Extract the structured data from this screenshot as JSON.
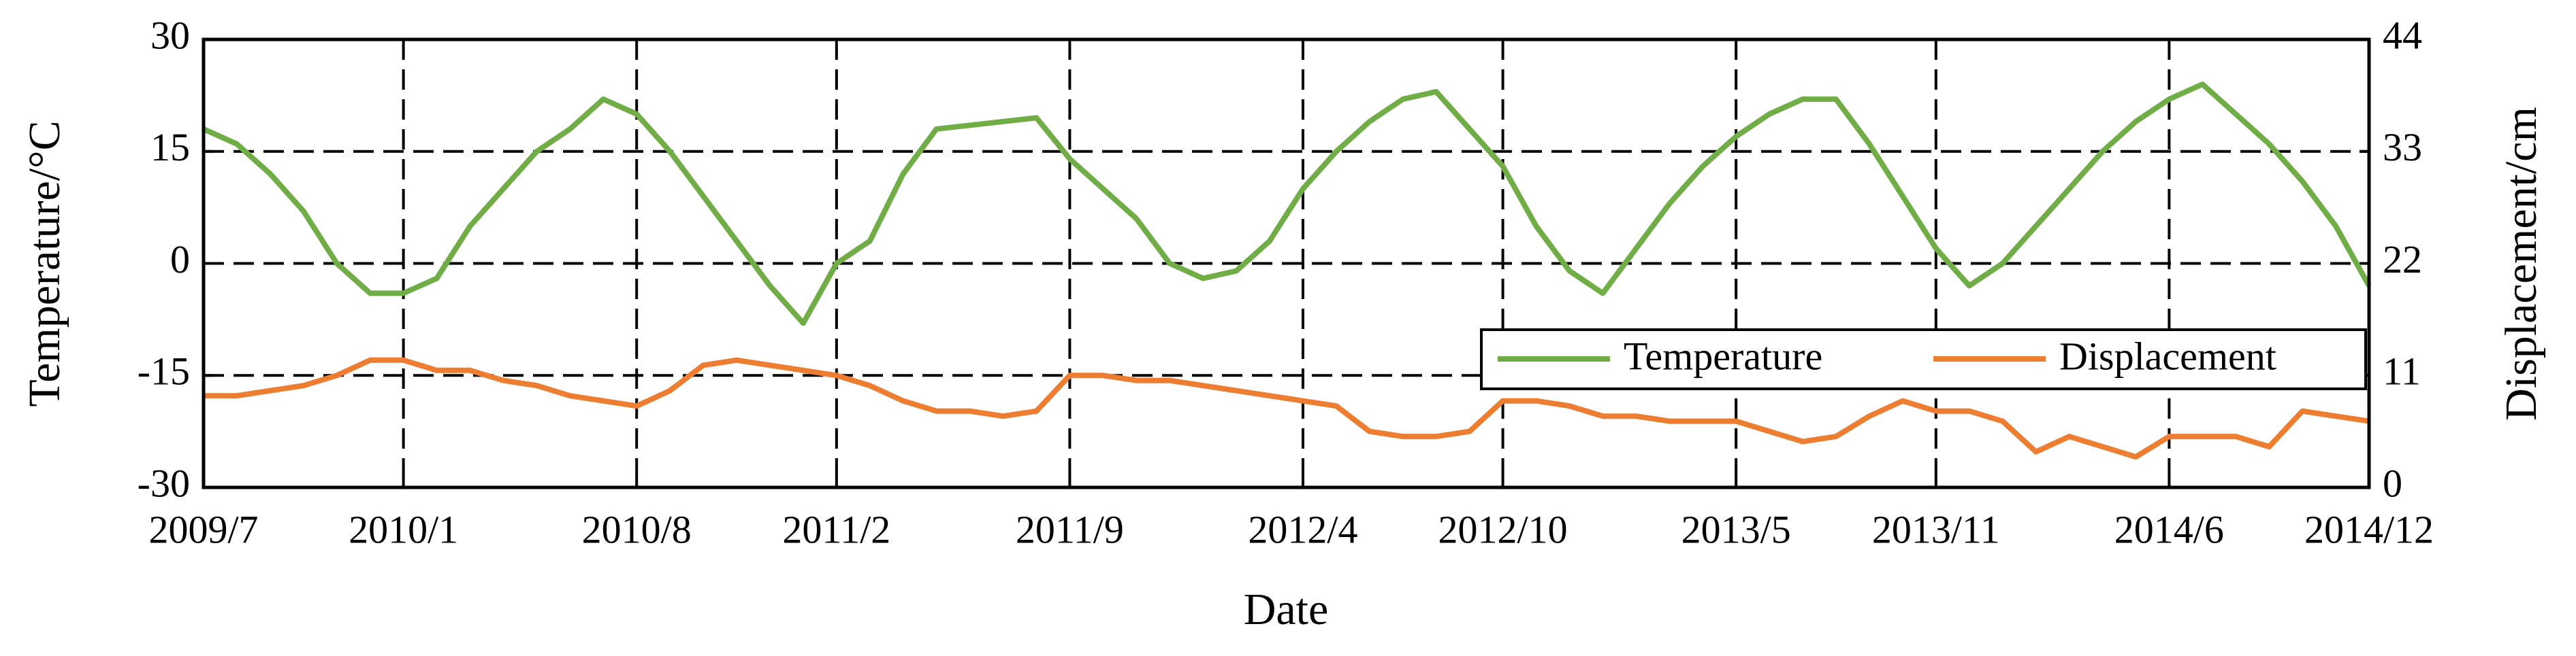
{
  "chart_data": {
    "type": "line",
    "x_label": "Date",
    "y_label": "Temperature/°C",
    "y2_label": "Displacement/cm",
    "x": [
      "2009/7",
      "2009/8",
      "2009/9",
      "2009/10",
      "2009/11",
      "2009/12",
      "2010/1",
      "2010/2",
      "2010/3",
      "2010/4",
      "2010/5",
      "2010/6",
      "2010/7",
      "2010/8",
      "2010/9",
      "2010/10",
      "2010/11",
      "2010/12",
      "2011/1",
      "2011/2",
      "2011/3",
      "2011/4",
      "2011/5",
      "2011/6",
      "2011/7",
      "2011/8",
      "2011/9",
      "2011/10",
      "2011/11",
      "2011/12",
      "2012/1",
      "2012/2",
      "2012/3",
      "2012/4",
      "2012/5",
      "2012/6",
      "2012/7",
      "2012/8",
      "2012/9",
      "2012/10",
      "2012/11",
      "2012/12",
      "2013/1",
      "2013/2",
      "2013/3",
      "2013/4",
      "2013/5",
      "2013/6",
      "2013/7",
      "2013/8",
      "2013/9",
      "2013/10",
      "2013/11",
      "2013/12",
      "2014/1",
      "2014/2",
      "2014/3",
      "2014/4",
      "2014/5",
      "2014/6",
      "2014/7",
      "2014/8",
      "2014/9",
      "2014/10",
      "2014/11",
      "2014/12"
    ],
    "xticks": [
      "2009/7",
      "2010/1",
      "2010/8",
      "2011/2",
      "2011/9",
      "2012/4",
      "2012/10",
      "2013/5",
      "2013/11",
      "2014/6",
      "2014/12"
    ],
    "ylim": [
      -30,
      30
    ],
    "yticks": [
      -30,
      -15,
      0,
      15,
      30
    ],
    "y2lim": [
      0,
      44
    ],
    "y2ticks": [
      0,
      11,
      22,
      33,
      44
    ],
    "grid": true,
    "series": [
      {
        "name": "Temperature",
        "color": "#70ad47",
        "values": [
          18,
          16,
          12,
          7,
          0,
          -4,
          -4,
          -2,
          5,
          10,
          15,
          18,
          22,
          20,
          15,
          9,
          3,
          -3,
          -8,
          0,
          3,
          12,
          18,
          18.5,
          19,
          19.5,
          14,
          10,
          6,
          0,
          -2,
          -1,
          3,
          10,
          15,
          19,
          22,
          23,
          18,
          13,
          5,
          -1,
          -4,
          2,
          8,
          13,
          17,
          20,
          22,
          22,
          16,
          9,
          2,
          -3,
          0,
          5,
          10,
          15,
          19,
          22,
          24,
          20,
          16,
          11,
          5,
          -3
        ]
      },
      {
        "name": "Displacement",
        "color": "#ed7d31",
        "axis": "y2",
        "values": [
          9,
          9,
          9.5,
          10,
          11,
          12.5,
          12.5,
          11.5,
          11.5,
          10.5,
          10,
          9,
          8.5,
          8,
          9.5,
          12,
          12.5,
          12,
          11.5,
          11,
          10,
          8.5,
          7.5,
          7.5,
          7,
          7.5,
          11,
          11,
          10.5,
          10.5,
          10,
          9.5,
          9,
          8.5,
          8,
          5.5,
          5,
          5,
          5.5,
          8.5,
          8.5,
          8,
          7,
          7,
          6.5,
          6.5,
          6.5,
          5.5,
          4.5,
          5,
          7,
          8.5,
          7.5,
          7.5,
          6.5,
          3.5,
          5,
          4,
          3,
          5,
          5,
          5,
          4,
          7.5,
          7,
          6.5
        ]
      }
    ]
  }
}
